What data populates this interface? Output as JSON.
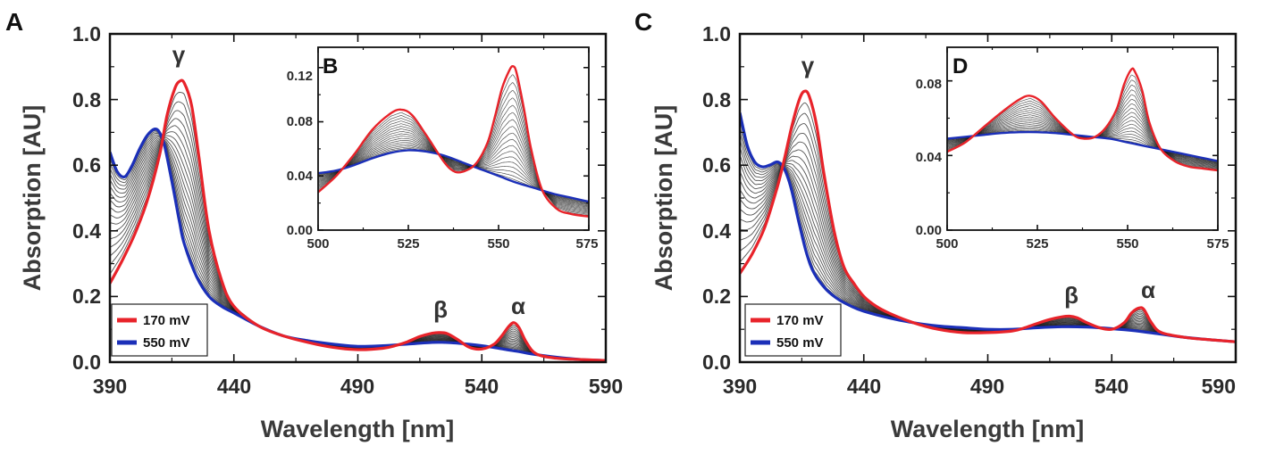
{
  "figure": {
    "panels": [
      {
        "id": "A",
        "letter": "A",
        "xlabel": "Wavelength [nm]",
        "ylabel": "Absorption [AU]",
        "xticks": [
          "390",
          "440",
          "490",
          "540",
          "590"
        ],
        "yticks": [
          "0.0",
          "0.2",
          "0.4",
          "0.6",
          "0.8",
          "1.0"
        ],
        "peaks": {
          "gamma": "γ",
          "beta": "β",
          "alpha": "α"
        },
        "legend": [
          "170 mV",
          "550 mV"
        ],
        "inset": {
          "letter": "B",
          "xticks": [
            "500",
            "525",
            "550",
            "575"
          ],
          "yticks": [
            "0.00",
            "0.04",
            "0.08",
            "0.12"
          ]
        }
      },
      {
        "id": "C",
        "letter": "C",
        "xlabel": "Wavelength [nm]",
        "ylabel": "Absorption [AU]",
        "xticks": [
          "390",
          "440",
          "490",
          "540",
          "590"
        ],
        "yticks": [
          "0.0",
          "0.2",
          "0.4",
          "0.6",
          "0.8",
          "1.0"
        ],
        "peaks": {
          "gamma": "γ",
          "beta": "β",
          "alpha": "α"
        },
        "legend": [
          "170 mV",
          "550 mV"
        ],
        "inset": {
          "letter": "D",
          "xticks": [
            "500",
            "525",
            "550",
            "575"
          ],
          "yticks": [
            "0.00",
            "0.04",
            "0.08"
          ]
        }
      }
    ]
  },
  "chart_data": [
    {
      "type": "line",
      "panel": "A",
      "title": "",
      "xlabel": "Wavelength [nm]",
      "ylabel": "Absorption [AU]",
      "xlim": [
        390,
        590
      ],
      "ylim": [
        0,
        1.0
      ],
      "peak_labels": [
        "γ",
        "β",
        "α"
      ],
      "series": [
        {
          "name": "170 mV",
          "color": "#e8232a",
          "x": [
            390,
            395,
            400,
            405,
            410,
            413,
            416,
            418,
            420,
            423,
            426,
            430,
            435,
            440,
            450,
            460,
            470,
            480,
            490,
            500,
            505,
            510,
            515,
            520,
            523,
            526,
            530,
            535,
            540,
            545,
            548,
            551,
            553,
            555,
            558,
            562,
            570,
            580,
            590
          ],
          "y": [
            0.24,
            0.31,
            0.39,
            0.49,
            0.63,
            0.75,
            0.83,
            0.855,
            0.85,
            0.78,
            0.62,
            0.4,
            0.25,
            0.17,
            0.11,
            0.08,
            0.06,
            0.045,
            0.038,
            0.042,
            0.05,
            0.062,
            0.078,
            0.088,
            0.09,
            0.087,
            0.07,
            0.045,
            0.04,
            0.055,
            0.08,
            0.11,
            0.12,
            0.105,
            0.06,
            0.025,
            0.012,
            0.008,
            0.005
          ]
        },
        {
          "name": "550 mV",
          "color": "#1b2fb8",
          "x": [
            390,
            393,
            396,
            399,
            402,
            405,
            408,
            410,
            412,
            415,
            418,
            420,
            425,
            430,
            435,
            440,
            450,
            460,
            470,
            480,
            490,
            500,
            510,
            520,
            525,
            530,
            540,
            550,
            555,
            560,
            570,
            580,
            590
          ],
          "y": [
            0.64,
            0.58,
            0.565,
            0.6,
            0.65,
            0.69,
            0.71,
            0.7,
            0.66,
            0.55,
            0.43,
            0.36,
            0.26,
            0.2,
            0.17,
            0.15,
            0.11,
            0.08,
            0.065,
            0.055,
            0.048,
            0.05,
            0.055,
            0.06,
            0.06,
            0.058,
            0.05,
            0.038,
            0.032,
            0.025,
            0.015,
            0.008,
            0.005
          ]
        }
      ]
    },
    {
      "type": "line",
      "panel": "B",
      "title": "",
      "xlim": [
        500,
        575
      ],
      "ylim": [
        0,
        0.135
      ],
      "series": [
        {
          "name": "170 mV",
          "color": "#e8232a",
          "x": [
            500,
            505,
            510,
            515,
            520,
            523,
            526,
            530,
            535,
            538,
            541,
            544,
            547,
            549,
            551,
            553,
            554,
            555,
            557,
            559,
            562,
            566,
            570,
            575
          ],
          "y": [
            0.028,
            0.04,
            0.056,
            0.074,
            0.086,
            0.089,
            0.085,
            0.07,
            0.05,
            0.043,
            0.044,
            0.05,
            0.065,
            0.084,
            0.105,
            0.118,
            0.121,
            0.116,
            0.09,
            0.06,
            0.03,
            0.016,
            0.012,
            0.01
          ]
        },
        {
          "name": "550 mV",
          "color": "#1b2fb8",
          "x": [
            500,
            505,
            510,
            515,
            520,
            525,
            530,
            535,
            540,
            545,
            550,
            555,
            560,
            565,
            570,
            575
          ],
          "y": [
            0.042,
            0.044,
            0.048,
            0.053,
            0.057,
            0.059,
            0.058,
            0.055,
            0.05,
            0.045,
            0.04,
            0.035,
            0.031,
            0.027,
            0.024,
            0.021
          ]
        }
      ]
    },
    {
      "type": "line",
      "panel": "C",
      "title": "",
      "xlabel": "Wavelength [nm]",
      "ylabel": "Absorption [AU]",
      "xlim": [
        390,
        590
      ],
      "ylim": [
        0,
        1.0
      ],
      "peak_labels": [
        "γ",
        "β",
        "α"
      ],
      "series": [
        {
          "name": "170 mV",
          "color": "#e8232a",
          "x": [
            390,
            395,
            400,
            405,
            408,
            411,
            414,
            416,
            418,
            421,
            424,
            428,
            432,
            436,
            440,
            445,
            450,
            460,
            470,
            480,
            490,
            500,
            505,
            510,
            515,
            520,
            523,
            526,
            530,
            535,
            540,
            545,
            548,
            551,
            553,
            556,
            560,
            570,
            580,
            590
          ],
          "y": [
            0.27,
            0.33,
            0.41,
            0.53,
            0.62,
            0.72,
            0.8,
            0.825,
            0.81,
            0.72,
            0.57,
            0.4,
            0.29,
            0.24,
            0.2,
            0.17,
            0.15,
            0.12,
            0.1,
            0.09,
            0.09,
            0.095,
            0.105,
            0.118,
            0.13,
            0.138,
            0.14,
            0.135,
            0.12,
            0.105,
            0.1,
            0.12,
            0.15,
            0.165,
            0.16,
            0.12,
            0.09,
            0.075,
            0.068,
            0.062
          ]
        },
        {
          "name": "550 mV",
          "color": "#1b2fb8",
          "x": [
            390,
            393,
            396,
            399,
            402,
            405,
            407,
            409,
            411,
            414,
            417,
            420,
            425,
            430,
            435,
            440,
            450,
            460,
            470,
            480,
            490,
            500,
            510,
            520,
            530,
            540,
            550,
            560,
            570,
            580,
            590
          ],
          "y": [
            0.76,
            0.66,
            0.61,
            0.595,
            0.6,
            0.61,
            0.6,
            0.57,
            0.52,
            0.42,
            0.33,
            0.27,
            0.22,
            0.19,
            0.17,
            0.155,
            0.135,
            0.12,
            0.11,
            0.105,
            0.1,
            0.1,
            0.105,
            0.108,
            0.107,
            0.102,
            0.095,
            0.085,
            0.075,
            0.068,
            0.062
          ]
        }
      ]
    },
    {
      "type": "line",
      "panel": "D",
      "title": "",
      "xlim": [
        500,
        575
      ],
      "ylim": [
        0,
        0.098
      ],
      "series": [
        {
          "name": "170 mV",
          "color": "#e8232a",
          "x": [
            500,
            505,
            510,
            515,
            520,
            523,
            526,
            530,
            535,
            538,
            541,
            544,
            547,
            549,
            551,
            552,
            554,
            556,
            559,
            563,
            567,
            571,
            575
          ],
          "y": [
            0.042,
            0.047,
            0.055,
            0.063,
            0.07,
            0.072,
            0.069,
            0.06,
            0.051,
            0.049,
            0.05,
            0.055,
            0.065,
            0.078,
            0.086,
            0.085,
            0.075,
            0.058,
            0.044,
            0.037,
            0.034,
            0.033,
            0.032
          ]
        },
        {
          "name": "550 mV",
          "color": "#1b2fb8",
          "x": [
            500,
            505,
            510,
            515,
            520,
            525,
            530,
            535,
            540,
            545,
            550,
            555,
            560,
            565,
            570,
            575
          ],
          "y": [
            0.049,
            0.05,
            0.051,
            0.052,
            0.0525,
            0.0525,
            0.052,
            0.051,
            0.05,
            0.049,
            0.047,
            0.045,
            0.043,
            0.041,
            0.039,
            0.037
          ]
        }
      ]
    }
  ]
}
